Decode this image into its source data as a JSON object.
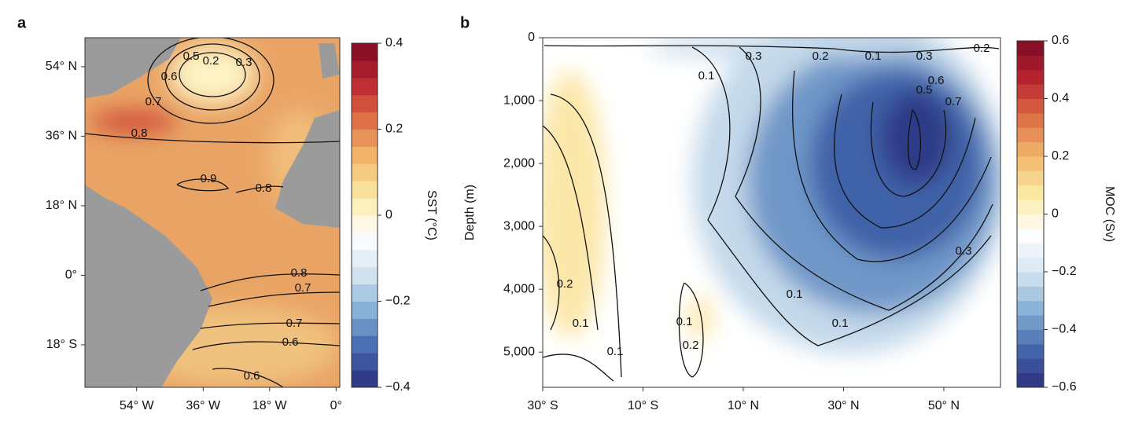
{
  "chart_data": [
    {
      "type": "contour",
      "panel": "a",
      "xlim": [
        -68,
        1
      ],
      "ylim": [
        -29,
        61.5
      ],
      "xticks": [
        {
          "value": -54,
          "label": "54° W"
        },
        {
          "value": -36,
          "label": "36° W"
        },
        {
          "value": -18,
          "label": "18° W"
        },
        {
          "value": 0,
          "label": "0°"
        }
      ],
      "yticks": [
        {
          "value": 54,
          "label": "54° N"
        },
        {
          "value": 36,
          "label": "36° N"
        },
        {
          "value": 18,
          "label": "18° N"
        },
        {
          "value": 0,
          "label": "0°"
        },
        {
          "value": -18,
          "label": "18° S"
        }
      ],
      "contour_labels": [
        "0.5",
        "0.2",
        "0.3",
        "0.6",
        "0.7",
        "0.8",
        "0.9",
        "0.8",
        "0.8",
        "0.7",
        "0.7",
        "0.6",
        "0.6"
      ],
      "colorbar": {
        "label": "SST (°C)",
        "lim": [
          -0.4,
          0.4
        ],
        "levels": 20,
        "ticks": [
          0.4,
          0.2,
          0,
          {
            "value": -0.2,
            "label": "−0.2"
          },
          {
            "value": -0.4,
            "label": "−0.4"
          }
        ],
        "colormap": [
          "#2c2f7c",
          "#4468ad",
          "#86b0d6",
          "#d6e6f1",
          "#ffffff",
          "#fbeaa6",
          "#f2b86c",
          "#dd7046",
          "#b92530",
          "#7c0a24"
        ]
      }
    },
    {
      "type": "contour",
      "panel": "b",
      "ylabel": "Depth (m)",
      "xlim": [
        -30,
        61.3
      ],
      "ylim": [
        5560,
        0
      ],
      "xticks": [
        {
          "value": -30,
          "label": "30° S"
        },
        {
          "value": -10,
          "label": "10° S"
        },
        {
          "value": 10,
          "label": "10° N"
        },
        {
          "value": 30,
          "label": "30° N"
        },
        {
          "value": 50,
          "label": "50° N"
        }
      ],
      "yticks": [
        0,
        {
          "value": 1000,
          "label": "1,000"
        },
        {
          "value": 2000,
          "label": "2,000"
        },
        {
          "value": 3000,
          "label": "3,000"
        },
        {
          "value": 4000,
          "label": "4,000"
        },
        {
          "value": 5000,
          "label": "5,000"
        }
      ],
      "contour_labels": [
        "0.3",
        "0.2",
        "0.1",
        "0.1",
        "0.3",
        "0.5",
        "0.6",
        "0.7",
        "0.2",
        "0.3",
        "0.2",
        "0.1",
        "0.1",
        "0.1",
        "0.1",
        "0.2",
        "0.1"
      ],
      "colorbar": {
        "label": "MOC (Sv)",
        "lim": [
          -0.6,
          0.6
        ],
        "levels": 24,
        "ticks": [
          0.6,
          0.4,
          0.2,
          0,
          {
            "value": -0.2,
            "label": "−0.2"
          },
          {
            "value": -0.4,
            "label": "−0.4"
          },
          {
            "value": -0.6,
            "label": "−0.6"
          }
        ],
        "colormap": [
          "#2c2f7c",
          "#4468ad",
          "#86b0d6",
          "#d6e6f1",
          "#ffffff",
          "#fbeaa6",
          "#f2b86c",
          "#dd7046",
          "#b92530",
          "#7c0a24"
        ]
      }
    }
  ]
}
